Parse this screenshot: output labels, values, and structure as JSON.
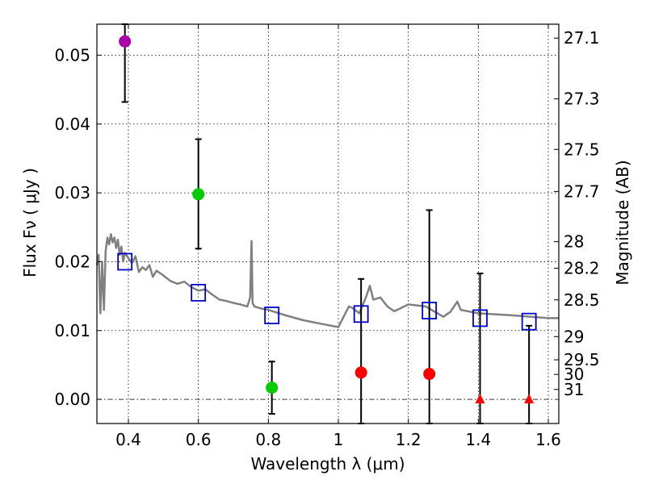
{
  "chart_data": {
    "type": "scatter",
    "title": "",
    "xlabel": "Wavelength  λ (μm)",
    "ylabel": "Flux  Fν  ( μJy )",
    "y2label": "Magnitude (AB)",
    "xlim": [
      0.31,
      1.63
    ],
    "ylim": [
      -0.0035,
      0.0545
    ],
    "grid": true,
    "xticks": [
      0.4,
      0.6,
      0.8,
      1.0,
      1.2,
      1.4,
      1.6
    ],
    "xtick_labels": [
      "0.4",
      "0.6",
      "0.8",
      "1",
      "1.2",
      "1.4",
      "1.6"
    ],
    "yticks": [
      0.0,
      0.01,
      0.02,
      0.03,
      0.04,
      0.05
    ],
    "ytick_labels": [
      "0.00",
      "0.01",
      "0.02",
      "0.03",
      "0.04",
      "0.05"
    ],
    "magnitude_ticks": [
      "27.1",
      "27.3",
      "27.5",
      "27.7",
      "28",
      "28.2",
      "28.5",
      "29",
      "29.5",
      "30",
      "31"
    ],
    "zero_line": 0.0,
    "series": [
      {
        "name": "model spectrum",
        "kind": "line",
        "color": "#808080",
        "x": [
          0.31,
          0.315,
          0.32,
          0.325,
          0.33,
          0.335,
          0.34,
          0.345,
          0.35,
          0.355,
          0.36,
          0.365,
          0.37,
          0.375,
          0.38,
          0.385,
          0.39,
          0.4,
          0.41,
          0.42,
          0.43,
          0.44,
          0.45,
          0.46,
          0.47,
          0.48,
          0.5,
          0.52,
          0.54,
          0.56,
          0.58,
          0.6,
          0.62,
          0.64,
          0.66,
          0.68,
          0.7,
          0.72,
          0.74,
          0.748,
          0.752,
          0.755,
          0.76,
          0.78,
          0.8,
          0.85,
          0.9,
          0.95,
          1.0,
          1.02,
          1.03,
          1.04,
          1.06,
          1.08,
          1.09,
          1.1,
          1.12,
          1.14,
          1.16,
          1.2,
          1.25,
          1.3,
          1.32,
          1.34,
          1.35,
          1.4,
          1.5,
          1.6,
          1.63
        ],
        "y": [
          0.0195,
          0.021,
          0.0125,
          0.02,
          0.013,
          0.0215,
          0.0235,
          0.0225,
          0.024,
          0.0228,
          0.0235,
          0.022,
          0.0232,
          0.021,
          0.0222,
          0.02,
          0.0213,
          0.0205,
          0.0198,
          0.0208,
          0.0185,
          0.0192,
          0.0188,
          0.0195,
          0.0178,
          0.0187,
          0.018,
          0.0172,
          0.0168,
          0.0171,
          0.0163,
          0.0158,
          0.016,
          0.0152,
          0.0145,
          0.0143,
          0.014,
          0.0138,
          0.0135,
          0.0148,
          0.023,
          0.014,
          0.0135,
          0.0132,
          0.013,
          0.0122,
          0.0115,
          0.011,
          0.0105,
          0.0125,
          0.0135,
          0.0133,
          0.0125,
          0.015,
          0.0165,
          0.0145,
          0.0148,
          0.0135,
          0.0128,
          0.0138,
          0.0135,
          0.012,
          0.0127,
          0.0142,
          0.013,
          0.0125,
          0.0122,
          0.0118,
          0.0118
        ]
      },
      {
        "name": "model photometry",
        "kind": "open-square",
        "color": "#0000cc",
        "x": [
          0.39,
          0.6,
          0.81,
          1.065,
          1.26,
          1.405,
          1.545
        ],
        "y": [
          0.02,
          0.0155,
          0.0122,
          0.0124,
          0.0129,
          0.0118,
          0.0113
        ]
      },
      {
        "name": "detections",
        "kind": "point",
        "x": [
          0.39,
          0.6,
          0.81,
          1.065,
          1.26
        ],
        "y": [
          0.052,
          0.0298,
          0.0017,
          0.0039,
          0.0037
        ],
        "err_low": [
          0.0432,
          0.0219,
          -0.0021,
          -0.0035,
          -0.0035
        ],
        "err_high": [
          0.0545,
          0.0378,
          0.0055,
          0.0175,
          0.0275
        ],
        "colors": [
          "#aa00aa",
          "#00cc00",
          "#00cc00",
          "#ff0000",
          "#ff0000"
        ]
      },
      {
        "name": "upper limits",
        "kind": "triangle",
        "color": "#ff0000",
        "x": [
          1.405,
          1.545
        ],
        "y": [
          0.0,
          0.0
        ],
        "err_low": [
          -0.0035,
          -0.0035
        ],
        "err_high": [
          0.0183,
          0.0107
        ]
      }
    ]
  }
}
